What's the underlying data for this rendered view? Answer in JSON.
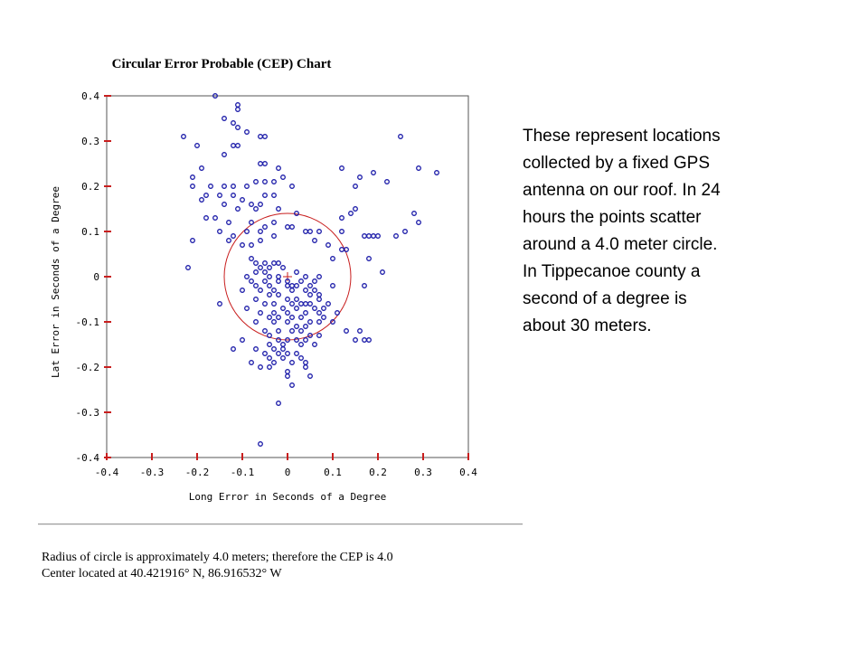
{
  "chart_data": {
    "type": "scatter",
    "title": "Circular Error Probable (CEP) Chart",
    "xlabel": "Long Error in Seconds of a Degree",
    "ylabel": "Lat Error in Seconds of a Degree",
    "xlim": [
      -0.4,
      0.4
    ],
    "ylim": [
      -0.4,
      0.4
    ],
    "x_ticks": [
      -0.4,
      -0.3,
      -0.2,
      -0.1,
      0,
      0.1,
      0.2,
      0.3,
      0.4
    ],
    "x_tick_labels": [
      "-0.4",
      "-0.3",
      "-0.2",
      "-0.1",
      "0",
      "0.1",
      "0.2",
      "0.3",
      "0.4"
    ],
    "y_ticks": [
      0.4,
      0.3,
      0.2,
      0.1,
      0,
      -0.1,
      -0.2,
      -0.3,
      -0.4
    ],
    "y_tick_labels": [
      "0.4",
      "0.3",
      "0.2",
      "0.1",
      "0",
      "-0.1",
      "-0.2",
      "-0.3",
      "-0.4"
    ],
    "grid": false,
    "circle": {
      "center": [
        0,
        0
      ],
      "radius": 0.14
    },
    "center_marker": {
      "x": 0,
      "y": 0
    },
    "colors": {
      "points": "#1a1aa8",
      "circle": "#c81e1e",
      "ticks": "#c81e1e",
      "axes": "#555555"
    },
    "points": [
      [
        -0.16,
        0.4
      ],
      [
        -0.11,
        0.38
      ],
      [
        -0.11,
        0.37
      ],
      [
        -0.14,
        0.35
      ],
      [
        -0.12,
        0.34
      ],
      [
        -0.11,
        0.33
      ],
      [
        -0.23,
        0.31
      ],
      [
        -0.06,
        0.31
      ],
      [
        -0.05,
        0.31
      ],
      [
        -0.09,
        0.32
      ],
      [
        -0.12,
        0.29
      ],
      [
        -0.11,
        0.29
      ],
      [
        -0.2,
        0.29
      ],
      [
        -0.14,
        0.27
      ],
      [
        -0.06,
        0.25
      ],
      [
        -0.05,
        0.25
      ],
      [
        -0.02,
        0.24
      ],
      [
        -0.19,
        0.24
      ],
      [
        -0.21,
        0.22
      ],
      [
        -0.01,
        0.22
      ],
      [
        -0.07,
        0.21
      ],
      [
        -0.05,
        0.21
      ],
      [
        -0.03,
        0.21
      ],
      [
        -0.21,
        0.2
      ],
      [
        -0.17,
        0.2
      ],
      [
        -0.14,
        0.2
      ],
      [
        -0.12,
        0.2
      ],
      [
        -0.09,
        0.2
      ],
      [
        0.01,
        0.2
      ],
      [
        0.12,
        0.24
      ],
      [
        0.16,
        0.22
      ],
      [
        0.19,
        0.23
      ],
      [
        0.15,
        0.2
      ],
      [
        0.22,
        0.21
      ],
      [
        0.25,
        0.31
      ],
      [
        0.29,
        0.24
      ],
      [
        0.33,
        0.23
      ],
      [
        -0.18,
        0.18
      ],
      [
        -0.15,
        0.18
      ],
      [
        -0.12,
        0.18
      ],
      [
        -0.05,
        0.18
      ],
      [
        -0.03,
        0.18
      ],
      [
        -0.1,
        0.17
      ],
      [
        -0.08,
        0.16
      ],
      [
        -0.06,
        0.16
      ],
      [
        -0.19,
        0.17
      ],
      [
        -0.14,
        0.16
      ],
      [
        -0.11,
        0.15
      ],
      [
        -0.07,
        0.15
      ],
      [
        -0.02,
        0.15
      ],
      [
        0.02,
        0.14
      ],
      [
        0.14,
        0.14
      ],
      [
        0.12,
        0.13
      ],
      [
        0.15,
        0.15
      ],
      [
        0.28,
        0.14
      ],
      [
        0.29,
        0.12
      ],
      [
        -0.18,
        0.13
      ],
      [
        -0.16,
        0.13
      ],
      [
        -0.13,
        0.12
      ],
      [
        -0.08,
        0.12
      ],
      [
        -0.05,
        0.11
      ],
      [
        -0.03,
        0.12
      ],
      [
        0.0,
        0.11
      ],
      [
        0.01,
        0.11
      ],
      [
        0.04,
        0.1
      ],
      [
        -0.15,
        0.1
      ],
      [
        -0.12,
        0.09
      ],
      [
        -0.09,
        0.1
      ],
      [
        -0.06,
        0.1
      ],
      [
        -0.03,
        0.09
      ],
      [
        0.05,
        0.1
      ],
      [
        0.07,
        0.1
      ],
      [
        0.12,
        0.1
      ],
      [
        0.17,
        0.09
      ],
      [
        0.18,
        0.09
      ],
      [
        0.19,
        0.09
      ],
      [
        0.2,
        0.09
      ],
      [
        0.24,
        0.09
      ],
      [
        0.26,
        0.1
      ],
      [
        -0.21,
        0.08
      ],
      [
        -0.13,
        0.08
      ],
      [
        -0.1,
        0.07
      ],
      [
        -0.08,
        0.07
      ],
      [
        -0.06,
        0.08
      ],
      [
        0.06,
        0.08
      ],
      [
        0.09,
        0.07
      ],
      [
        0.12,
        0.06
      ],
      [
        0.13,
        0.06
      ],
      [
        -0.08,
        0.04
      ],
      [
        -0.07,
        0.03
      ],
      [
        -0.05,
        0.03
      ],
      [
        -0.02,
        0.03
      ],
      [
        -0.03,
        0.03
      ],
      [
        -0.06,
        0.02
      ],
      [
        -0.04,
        0.02
      ],
      [
        -0.01,
        0.02
      ],
      [
        0.1,
        0.04
      ],
      [
        0.18,
        0.04
      ],
      [
        0.21,
        0.01
      ],
      [
        -0.22,
        0.02
      ],
      [
        -0.07,
        0.01
      ],
      [
        -0.05,
        0.01
      ],
      [
        -0.09,
        0.0
      ],
      [
        -0.04,
        0.0
      ],
      [
        -0.02,
        0.0
      ],
      [
        0.02,
        0.01
      ],
      [
        0.04,
        0.0
      ],
      [
        0.07,
        0.0
      ],
      [
        -0.08,
        -0.01
      ],
      [
        -0.05,
        -0.01
      ],
      [
        -0.02,
        -0.01
      ],
      [
        0.0,
        -0.01
      ],
      [
        0.01,
        -0.02
      ],
      [
        0.03,
        -0.01
      ],
      [
        0.05,
        -0.02
      ],
      [
        0.06,
        -0.01
      ],
      [
        -0.07,
        -0.02
      ],
      [
        -0.04,
        -0.02
      ],
      [
        0.0,
        -0.02
      ],
      [
        0.02,
        -0.02
      ],
      [
        0.04,
        -0.03
      ],
      [
        0.06,
        -0.03
      ],
      [
        0.1,
        -0.02
      ],
      [
        0.17,
        -0.02
      ],
      [
        -0.1,
        -0.03
      ],
      [
        -0.06,
        -0.03
      ],
      [
        -0.03,
        -0.03
      ],
      [
        0.01,
        -0.03
      ],
      [
        0.05,
        -0.04
      ],
      [
        0.07,
        -0.04
      ],
      [
        -0.04,
        -0.04
      ],
      [
        -0.02,
        -0.04
      ],
      [
        0.0,
        -0.05
      ],
      [
        0.02,
        -0.05
      ],
      [
        0.04,
        -0.06
      ],
      [
        0.07,
        -0.05
      ],
      [
        -0.15,
        -0.06
      ],
      [
        -0.07,
        -0.05
      ],
      [
        -0.05,
        -0.06
      ],
      [
        -0.03,
        -0.06
      ],
      [
        0.01,
        -0.06
      ],
      [
        0.03,
        -0.06
      ],
      [
        0.05,
        -0.06
      ],
      [
        0.09,
        -0.06
      ],
      [
        -0.09,
        -0.07
      ],
      [
        -0.01,
        -0.07
      ],
      [
        0.02,
        -0.07
      ],
      [
        0.06,
        -0.07
      ],
      [
        0.08,
        -0.07
      ],
      [
        -0.06,
        -0.08
      ],
      [
        -0.03,
        -0.08
      ],
      [
        0.0,
        -0.08
      ],
      [
        0.04,
        -0.08
      ],
      [
        0.07,
        -0.08
      ],
      [
        0.11,
        -0.08
      ],
      [
        -0.04,
        -0.09
      ],
      [
        -0.02,
        -0.09
      ],
      [
        0.01,
        -0.09
      ],
      [
        0.03,
        -0.09
      ],
      [
        0.05,
        -0.1
      ],
      [
        0.08,
        -0.09
      ],
      [
        -0.07,
        -0.1
      ],
      [
        -0.03,
        -0.1
      ],
      [
        0.0,
        -0.1
      ],
      [
        0.02,
        -0.11
      ],
      [
        0.04,
        -0.11
      ],
      [
        0.07,
        -0.1
      ],
      [
        0.1,
        -0.1
      ],
      [
        -0.05,
        -0.12
      ],
      [
        -0.02,
        -0.12
      ],
      [
        0.01,
        -0.12
      ],
      [
        0.03,
        -0.12
      ],
      [
        0.05,
        -0.13
      ],
      [
        0.07,
        -0.13
      ],
      [
        -0.04,
        -0.13
      ],
      [
        0.0,
        -0.14
      ],
      [
        0.02,
        -0.14
      ],
      [
        0.04,
        -0.14
      ],
      [
        0.13,
        -0.12
      ],
      [
        0.16,
        -0.12
      ],
      [
        0.15,
        -0.14
      ],
      [
        0.17,
        -0.14
      ],
      [
        0.18,
        -0.14
      ],
      [
        -0.1,
        -0.14
      ],
      [
        -0.02,
        -0.14
      ],
      [
        -0.04,
        -0.15
      ],
      [
        -0.01,
        -0.15
      ],
      [
        0.03,
        -0.15
      ],
      [
        0.06,
        -0.15
      ],
      [
        -0.03,
        -0.16
      ],
      [
        -0.01,
        -0.16
      ],
      [
        -0.12,
        -0.16
      ],
      [
        -0.07,
        -0.16
      ],
      [
        -0.05,
        -0.17
      ],
      [
        -0.02,
        -0.17
      ],
      [
        0.0,
        -0.17
      ],
      [
        0.02,
        -0.17
      ],
      [
        -0.04,
        -0.18
      ],
      [
        -0.01,
        -0.18
      ],
      [
        0.01,
        -0.19
      ],
      [
        0.03,
        -0.18
      ],
      [
        -0.08,
        -0.19
      ],
      [
        -0.03,
        -0.19
      ],
      [
        0.04,
        -0.19
      ],
      [
        -0.06,
        -0.2
      ],
      [
        -0.04,
        -0.2
      ],
      [
        0.0,
        -0.21
      ],
      [
        0.04,
        -0.2
      ],
      [
        0.05,
        -0.22
      ],
      [
        0.0,
        -0.22
      ],
      [
        0.01,
        -0.24
      ],
      [
        -0.02,
        -0.28
      ],
      [
        -0.06,
        -0.37
      ]
    ]
  },
  "caption": {
    "line1": "Radius of circle is approximately 4.0 meters; therefore the CEP is 4.0",
    "line2": "Center located at 40.421916° N, 86.916532° W"
  },
  "side_note": {
    "lines": [
      "These represent locations",
      "collected by a fixed GPS",
      "antenna on our roof.  In 24",
      "hours the points scatter",
      "around a 4.0 meter circle.",
      "In Tippecanoe county a",
      "second of a degree is",
      "about 30 meters."
    ]
  }
}
